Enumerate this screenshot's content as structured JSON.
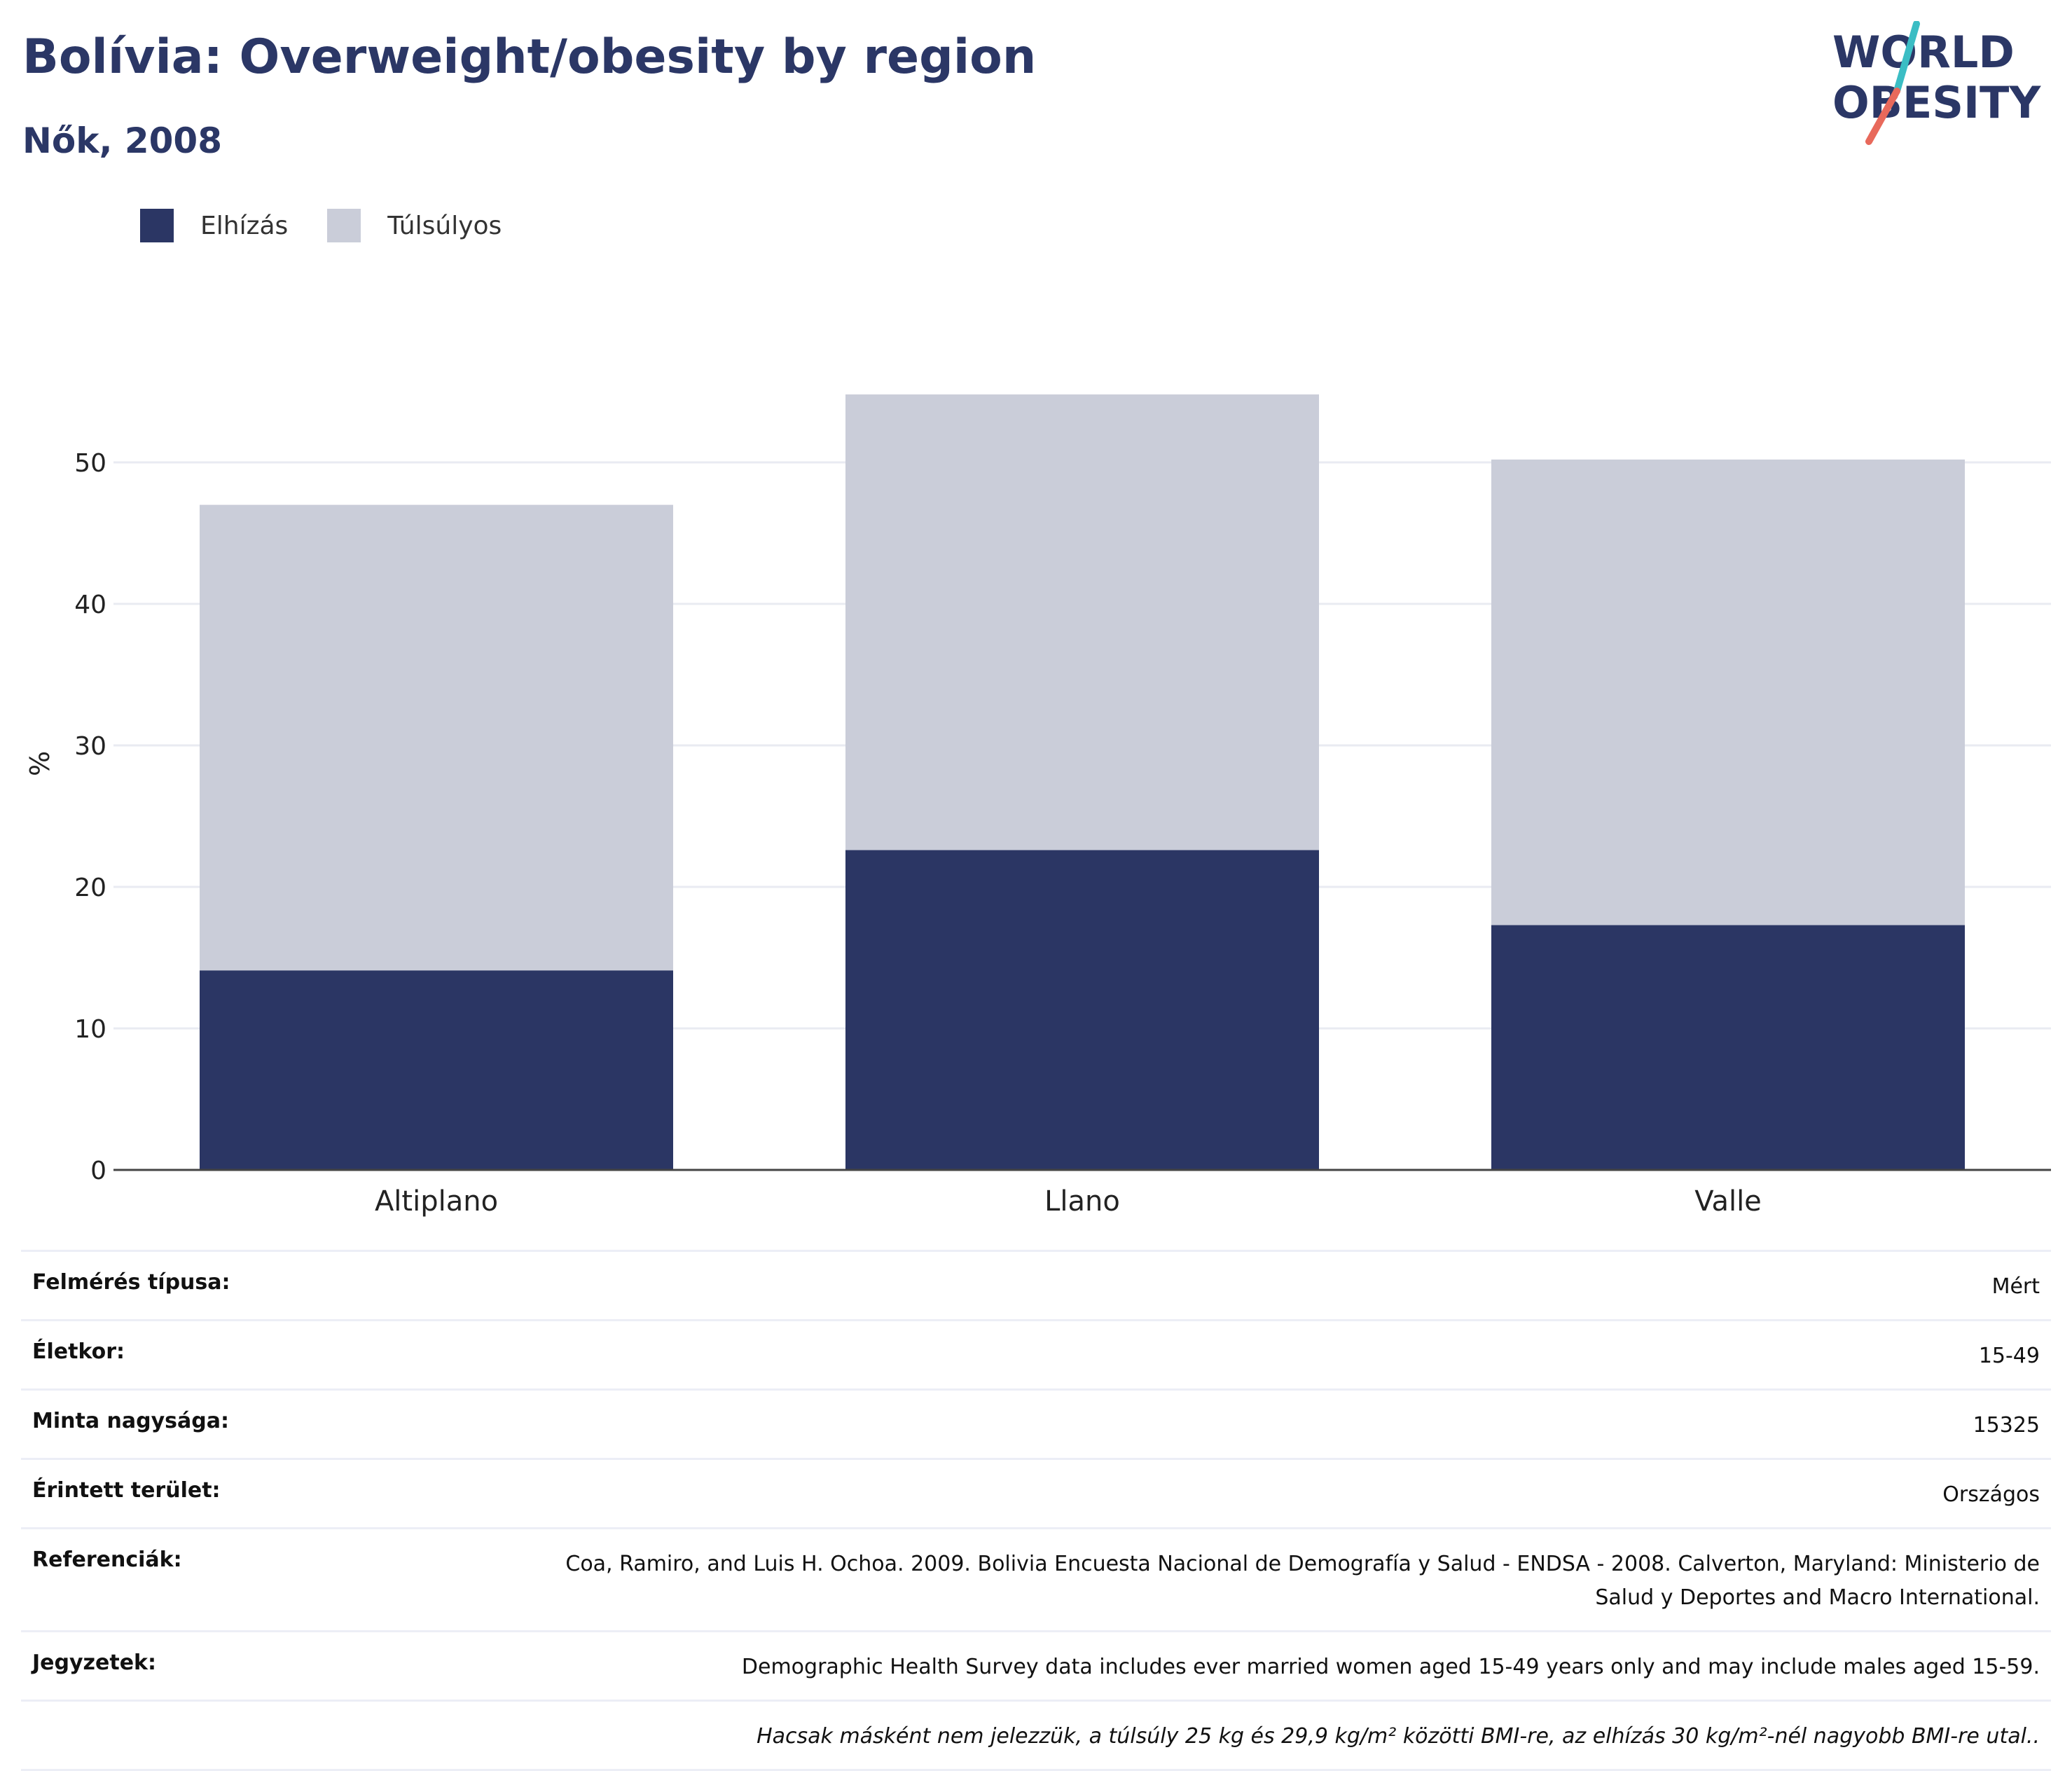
{
  "header": {
    "title": "Bolívia: Overweight/obesity by region",
    "subtitle": "Nők, 2008"
  },
  "logo": {
    "line1": "WORLD",
    "line2": "OBESITY",
    "colors": {
      "text": "#2b3766",
      "slash_top": "#3bbdc4",
      "slash_bottom": "#e8695b"
    }
  },
  "legend": {
    "items": [
      {
        "label": "Elhízás",
        "color": "#2b3664"
      },
      {
        "label": "Túlsúlyos",
        "color": "#cacdd9"
      }
    ]
  },
  "chart_data": {
    "type": "bar",
    "stacked": true,
    "categories": [
      "Altiplano",
      "Llano",
      "Valle"
    ],
    "series": [
      {
        "name": "Elhízás",
        "color": "#2b3664",
        "values": [
          14.1,
          22.6,
          17.3
        ]
      },
      {
        "name": "Túlsúlyos",
        "color": "#cacdd9",
        "values": [
          32.9,
          32.2,
          32.9
        ]
      }
    ],
    "totals": [
      47.0,
      54.8,
      50.2
    ],
    "ylabel": "%",
    "xlabel": "",
    "ylim": [
      0,
      58
    ],
    "yticks": [
      0,
      10,
      20,
      30,
      40,
      50
    ],
    "grid": true,
    "legend_position": "top-left"
  },
  "info": {
    "rows": [
      {
        "label": "Felmérés típusa:",
        "value": "Mért"
      },
      {
        "label": "Életkor:",
        "value": "15-49"
      },
      {
        "label": "Minta nagysága:",
        "value": "15325"
      },
      {
        "label": "Érintett terület:",
        "value": "Országos"
      },
      {
        "label": "Referenciák:",
        "value": "Coa, Ramiro, and Luis H. Ochoa. 2009. Bolivia Encuesta Nacional de Demografía y Salud - ENDSA - 2008. Calverton, Maryland: Ministerio de Salud y Deportes and Macro International."
      },
      {
        "label": "Jegyzetek:",
        "value": "Demographic Health Survey data includes ever married women aged 15-49 years only and may include males aged 15-59."
      },
      {
        "label": "",
        "value": "Hacsak másként nem jelezzük, a túlsúly 25 kg és 29,9 kg/m² közötti BMI-re, az elhízás 30 kg/m²-nél nagyobb BMI-re utal..",
        "italic": true
      }
    ]
  }
}
